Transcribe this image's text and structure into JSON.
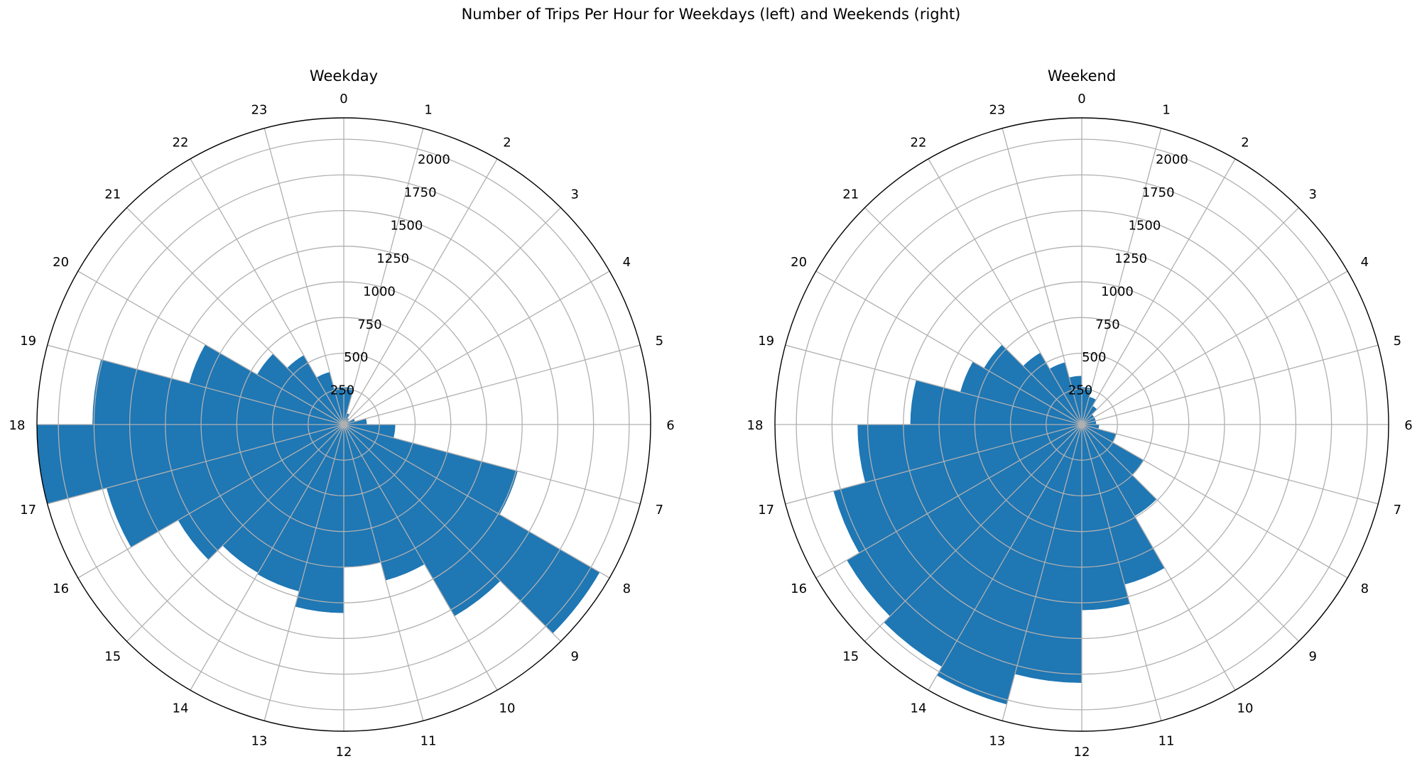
{
  "suptitle": "Number of Trips Per Hour for Weekdays (left) and Weekends (right)",
  "bar_color": "#1f77b4",
  "grid_color": "#b0b0b0",
  "chart_data": [
    {
      "type": "bar",
      "polar": true,
      "title": "Weekday",
      "theta_direction": "clockwise",
      "theta_zero": "top",
      "theta_tick_labels": [
        "0",
        "1",
        "2",
        "3",
        "4",
        "5",
        "6",
        "7",
        "8",
        "9",
        "10",
        "11",
        "12",
        "13",
        "14",
        "15",
        "16",
        "17",
        "18",
        "19",
        "20",
        "21",
        "22",
        "23"
      ],
      "r_tick_labels": [
        "250",
        "500",
        "750",
        "1000",
        "1250",
        "1500",
        "1750",
        "2000"
      ],
      "r_ticks": [
        250,
        500,
        750,
        1000,
        1250,
        1500,
        1750,
        2000
      ],
      "rlim": [
        0,
        2150
      ],
      "categories": [
        "0",
        "1",
        "2",
        "3",
        "4",
        "5",
        "6",
        "7",
        "8",
        "9",
        "10",
        "11",
        "12",
        "13",
        "14",
        "15",
        "16",
        "17",
        "18",
        "19",
        "20",
        "21",
        "22",
        "23"
      ],
      "values": [
        260,
        80,
        50,
        40,
        80,
        160,
        360,
        1260,
        2070,
        1550,
        1130,
        1000,
        1320,
        1210,
        1200,
        1340,
        1720,
        2150,
        1760,
        1120,
        700,
        560,
        380,
        260
      ],
      "grid": true
    },
    {
      "type": "bar",
      "polar": true,
      "title": "Weekend",
      "theta_direction": "clockwise",
      "theta_zero": "top",
      "theta_tick_labels": [
        "0",
        "1",
        "2",
        "3",
        "4",
        "5",
        "6",
        "7",
        "8",
        "9",
        "10",
        "11",
        "12",
        "13",
        "14",
        "15",
        "16",
        "17",
        "18",
        "19",
        "20",
        "21",
        "22",
        "23"
      ],
      "r_tick_labels": [
        "250",
        "500",
        "750",
        "1000",
        "1250",
        "1500",
        "1750",
        "2000"
      ],
      "r_ticks": [
        250,
        500,
        750,
        1000,
        1250,
        1500,
        1750,
        2000
      ],
      "rlim": [
        0,
        2150
      ],
      "categories": [
        "0",
        "1",
        "2",
        "3",
        "4",
        "5",
        "6",
        "7",
        "8",
        "9",
        "10",
        "11",
        "12",
        "13",
        "14",
        "15",
        "16",
        "17",
        "18",
        "19",
        "20",
        "21",
        "22",
        "23"
      ],
      "values": [
        260,
        200,
        150,
        100,
        100,
        100,
        120,
        250,
        500,
        740,
        1160,
        1300,
        1810,
        2030,
        1960,
        1900,
        1800,
        1570,
        1200,
        880,
        790,
        580,
        450,
        340
      ],
      "grid": true
    }
  ]
}
